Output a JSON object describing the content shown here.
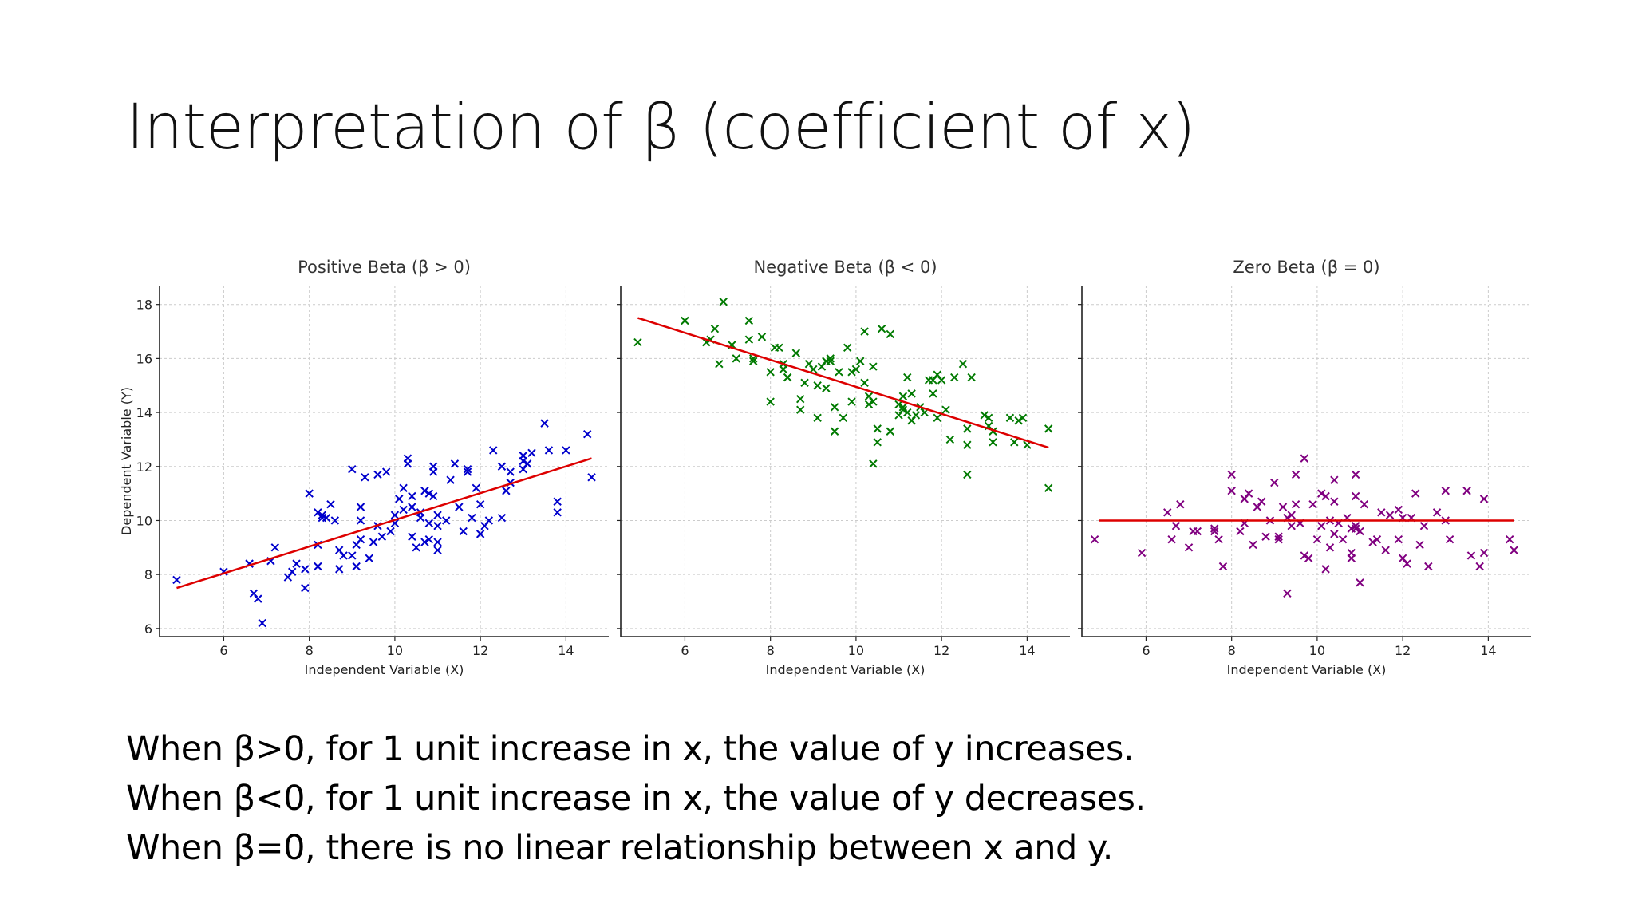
{
  "slide": {
    "title": "Interpretation of β (coefficient of x)",
    "bullets": [
      "When β>0, for 1 unit increase in x, the value of y increases.",
      "When β<0, for 1 unit increase in x, the value of y decreases.",
      "When β=0, there is no linear relationship between x and y."
    ]
  },
  "chart_data": [
    {
      "type": "scatter",
      "title": "Positive Beta (β > 0)",
      "xlabel": "Independent Variable (X)",
      "ylabel": "Dependent Variable (Y)",
      "xlim": [
        4.5,
        15.0
      ],
      "ylim": [
        5.7,
        18.7
      ],
      "xticks": [
        6,
        8,
        10,
        12,
        14
      ],
      "yticks": [
        6,
        8,
        10,
        12,
        14,
        16,
        18
      ],
      "grid": true,
      "marker_color": "#0000cc",
      "line_color": "#dd0000",
      "points": [
        [
          4.9,
          7.8
        ],
        [
          6.0,
          8.1
        ],
        [
          6.6,
          8.4
        ],
        [
          6.6,
          8.4
        ],
        [
          6.7,
          7.3
        ],
        [
          6.8,
          7.1
        ],
        [
          6.9,
          6.2
        ],
        [
          7.1,
          8.5
        ],
        [
          7.2,
          9.0
        ],
        [
          7.5,
          7.9
        ],
        [
          7.6,
          8.1
        ],
        [
          7.7,
          8.4
        ],
        [
          7.9,
          8.2
        ],
        [
          7.9,
          7.5
        ],
        [
          8.0,
          11.0
        ],
        [
          8.2,
          9.1
        ],
        [
          8.2,
          10.3
        ],
        [
          8.2,
          8.3
        ],
        [
          8.3,
          10.1
        ],
        [
          8.3,
          10.2
        ],
        [
          8.4,
          10.1
        ],
        [
          8.5,
          10.6
        ],
        [
          8.6,
          10.0
        ],
        [
          8.7,
          8.9
        ],
        [
          8.7,
          8.2
        ],
        [
          8.8,
          8.7
        ],
        [
          9.0,
          8.7
        ],
        [
          9.0,
          11.9
        ],
        [
          9.1,
          8.3
        ],
        [
          9.1,
          9.1
        ],
        [
          9.2,
          9.3
        ],
        [
          9.2,
          10.5
        ],
        [
          9.2,
          10.0
        ],
        [
          9.3,
          11.6
        ],
        [
          9.4,
          8.6
        ],
        [
          9.5,
          9.2
        ],
        [
          9.6,
          9.8
        ],
        [
          9.6,
          11.7
        ],
        [
          9.7,
          9.4
        ],
        [
          9.8,
          11.8
        ],
        [
          9.9,
          9.6
        ],
        [
          10.0,
          9.9
        ],
        [
          10.0,
          10.2
        ],
        [
          10.1,
          10.8
        ],
        [
          10.2,
          11.2
        ],
        [
          10.2,
          10.4
        ],
        [
          10.3,
          12.3
        ],
        [
          10.3,
          12.1
        ],
        [
          10.4,
          9.4
        ],
        [
          10.4,
          10.5
        ],
        [
          10.4,
          10.9
        ],
        [
          10.5,
          9.0
        ],
        [
          10.6,
          10.3
        ],
        [
          10.6,
          10.1
        ],
        [
          10.7,
          9.2
        ],
        [
          10.7,
          11.1
        ],
        [
          10.8,
          9.9
        ],
        [
          10.8,
          11.0
        ],
        [
          10.8,
          9.3
        ],
        [
          10.9,
          12.0
        ],
        [
          10.9,
          11.8
        ],
        [
          10.9,
          10.9
        ],
        [
          11.0,
          9.2
        ],
        [
          11.0,
          10.2
        ],
        [
          11.0,
          9.8
        ],
        [
          11.0,
          8.9
        ],
        [
          11.2,
          10.0
        ],
        [
          11.3,
          11.5
        ],
        [
          11.4,
          12.1
        ],
        [
          11.5,
          10.5
        ],
        [
          11.6,
          9.6
        ],
        [
          11.7,
          11.8
        ],
        [
          11.7,
          11.9
        ],
        [
          11.8,
          10.1
        ],
        [
          11.9,
          11.2
        ],
        [
          12.0,
          9.5
        ],
        [
          12.0,
          10.6
        ],
        [
          12.1,
          9.8
        ],
        [
          12.2,
          10.0
        ],
        [
          12.3,
          12.6
        ],
        [
          12.5,
          12.0
        ],
        [
          12.5,
          10.1
        ],
        [
          12.6,
          11.1
        ],
        [
          12.7,
          11.8
        ],
        [
          12.7,
          11.4
        ],
        [
          13.0,
          11.9
        ],
        [
          13.0,
          12.2
        ],
        [
          13.0,
          12.4
        ],
        [
          13.1,
          12.1
        ],
        [
          13.2,
          12.5
        ],
        [
          13.5,
          13.6
        ],
        [
          13.6,
          12.6
        ],
        [
          13.8,
          10.7
        ],
        [
          13.8,
          10.3
        ],
        [
          14.0,
          12.6
        ],
        [
          14.5,
          13.2
        ],
        [
          14.6,
          11.6
        ]
      ],
      "fit": {
        "x": [
          4.9,
          14.6
        ],
        "y": [
          7.5,
          12.3
        ]
      }
    },
    {
      "type": "scatter",
      "title": "Negative Beta (β < 0)",
      "xlabel": "Independent Variable (X)",
      "ylabel": "",
      "xlim": [
        4.5,
        15.0
      ],
      "ylim": [
        5.7,
        18.7
      ],
      "xticks": [
        6,
        8,
        10,
        12,
        14
      ],
      "yticks": [
        6,
        8,
        10,
        12,
        14,
        16,
        18
      ],
      "grid": true,
      "marker_color": "#007a00",
      "line_color": "#dd0000",
      "points": [
        [
          4.9,
          16.6
        ],
        [
          6.0,
          17.4
        ],
        [
          6.5,
          16.6
        ],
        [
          6.6,
          16.7
        ],
        [
          6.7,
          17.1
        ],
        [
          6.8,
          15.8
        ],
        [
          6.9,
          18.1
        ],
        [
          7.1,
          16.5
        ],
        [
          7.2,
          16.0
        ],
        [
          7.5,
          17.4
        ],
        [
          7.5,
          16.7
        ],
        [
          7.6,
          16.0
        ],
        [
          7.6,
          15.9
        ],
        [
          7.8,
          16.8
        ],
        [
          8.0,
          15.5
        ],
        [
          8.0,
          14.4
        ],
        [
          8.1,
          16.4
        ],
        [
          8.2,
          16.4
        ],
        [
          8.3,
          15.8
        ],
        [
          8.3,
          15.6
        ],
        [
          8.4,
          15.3
        ],
        [
          8.4,
          15.3
        ],
        [
          8.6,
          16.2
        ],
        [
          8.7,
          14.5
        ],
        [
          8.7,
          14.1
        ],
        [
          8.8,
          15.1
        ],
        [
          8.9,
          15.8
        ],
        [
          9.0,
          15.6
        ],
        [
          9.1,
          13.8
        ],
        [
          9.1,
          15.0
        ],
        [
          9.2,
          15.7
        ],
        [
          9.3,
          14.9
        ],
        [
          9.3,
          15.9
        ],
        [
          9.4,
          15.9
        ],
        [
          9.4,
          16.0
        ],
        [
          9.5,
          14.2
        ],
        [
          9.5,
          13.3
        ],
        [
          9.6,
          15.5
        ],
        [
          9.7,
          13.8
        ],
        [
          9.8,
          16.4
        ],
        [
          9.9,
          15.5
        ],
        [
          9.9,
          14.4
        ],
        [
          10.0,
          15.6
        ],
        [
          10.1,
          15.9
        ],
        [
          10.2,
          15.1
        ],
        [
          10.2,
          17.0
        ],
        [
          10.3,
          14.3
        ],
        [
          10.3,
          14.6
        ],
        [
          10.4,
          12.1
        ],
        [
          10.4,
          15.7
        ],
        [
          10.4,
          14.4
        ],
        [
          10.5,
          13.4
        ],
        [
          10.5,
          12.9
        ],
        [
          10.6,
          17.1
        ],
        [
          10.8,
          16.9
        ],
        [
          10.8,
          13.3
        ],
        [
          11.0,
          14.3
        ],
        [
          11.0,
          13.9
        ],
        [
          11.1,
          14.1
        ],
        [
          11.1,
          14.6
        ],
        [
          11.1,
          14.2
        ],
        [
          11.2,
          14.0
        ],
        [
          11.2,
          15.3
        ],
        [
          11.3,
          14.7
        ],
        [
          11.3,
          13.7
        ],
        [
          11.4,
          13.9
        ],
        [
          11.5,
          14.2
        ],
        [
          11.6,
          14.0
        ],
        [
          11.7,
          15.2
        ],
        [
          11.8,
          14.7
        ],
        [
          11.8,
          15.2
        ],
        [
          11.9,
          13.8
        ],
        [
          11.9,
          15.4
        ],
        [
          12.0,
          15.2
        ],
        [
          12.1,
          14.1
        ],
        [
          12.2,
          13.0
        ],
        [
          12.3,
          15.3
        ],
        [
          12.5,
          15.8
        ],
        [
          12.6,
          13.4
        ],
        [
          12.6,
          12.8
        ],
        [
          12.6,
          11.7
        ],
        [
          12.7,
          15.3
        ],
        [
          13.0,
          13.9
        ],
        [
          13.1,
          13.5
        ],
        [
          13.1,
          13.8
        ],
        [
          13.2,
          13.3
        ],
        [
          13.2,
          12.9
        ],
        [
          13.6,
          13.8
        ],
        [
          13.7,
          12.9
        ],
        [
          13.8,
          13.7
        ],
        [
          13.9,
          13.8
        ],
        [
          14.0,
          12.8
        ],
        [
          14.5,
          13.4
        ],
        [
          14.5,
          11.2
        ]
      ],
      "fit": {
        "x": [
          4.9,
          14.5
        ],
        "y": [
          17.5,
          12.7
        ]
      }
    },
    {
      "type": "scatter",
      "title": "Zero Beta (β = 0)",
      "xlabel": "Independent Variable (X)",
      "ylabel": "",
      "xlim": [
        4.5,
        15.0
      ],
      "ylim": [
        5.7,
        18.7
      ],
      "xticks": [
        6,
        8,
        10,
        12,
        14
      ],
      "yticks": [
        6,
        8,
        10,
        12,
        14,
        16,
        18
      ],
      "grid": true,
      "marker_color": "#800080",
      "line_color": "#dd0000",
      "points": [
        [
          4.8,
          9.3
        ],
        [
          5.9,
          8.8
        ],
        [
          6.5,
          10.3
        ],
        [
          6.6,
          9.3
        ],
        [
          6.7,
          9.8
        ],
        [
          6.8,
          10.6
        ],
        [
          7.0,
          9.0
        ],
        [
          7.1,
          9.6
        ],
        [
          7.2,
          9.6
        ],
        [
          7.6,
          9.7
        ],
        [
          7.6,
          9.6
        ],
        [
          7.7,
          9.3
        ],
        [
          7.8,
          8.3
        ],
        [
          8.0,
          11.7
        ],
        [
          8.0,
          11.1
        ],
        [
          8.2,
          9.6
        ],
        [
          8.3,
          9.9
        ],
        [
          8.3,
          10.8
        ],
        [
          8.4,
          11.0
        ],
        [
          8.5,
          9.1
        ],
        [
          8.6,
          10.5
        ],
        [
          8.7,
          10.7
        ],
        [
          8.8,
          9.4
        ],
        [
          8.9,
          10.0
        ],
        [
          9.0,
          11.4
        ],
        [
          9.1,
          9.4
        ],
        [
          9.1,
          9.3
        ],
        [
          9.2,
          10.5
        ],
        [
          9.3,
          10.1
        ],
        [
          9.3,
          7.3
        ],
        [
          9.4,
          10.2
        ],
        [
          9.4,
          9.8
        ],
        [
          9.5,
          11.7
        ],
        [
          9.5,
          10.6
        ],
        [
          9.6,
          9.9
        ],
        [
          9.7,
          8.7
        ],
        [
          9.7,
          12.3
        ],
        [
          9.8,
          8.6
        ],
        [
          9.9,
          10.6
        ],
        [
          10.0,
          9.3
        ],
        [
          10.1,
          11.0
        ],
        [
          10.1,
          9.8
        ],
        [
          10.2,
          8.2
        ],
        [
          10.2,
          10.9
        ],
        [
          10.3,
          9.0
        ],
        [
          10.3,
          10.0
        ],
        [
          10.4,
          11.5
        ],
        [
          10.4,
          9.5
        ],
        [
          10.4,
          10.7
        ],
        [
          10.5,
          9.9
        ],
        [
          10.6,
          9.3
        ],
        [
          10.7,
          10.1
        ],
        [
          10.8,
          9.7
        ],
        [
          10.8,
          8.8
        ],
        [
          10.8,
          8.6
        ],
        [
          10.9,
          9.7
        ],
        [
          10.9,
          10.9
        ],
        [
          10.9,
          9.8
        ],
        [
          10.9,
          11.7
        ],
        [
          11.0,
          9.6
        ],
        [
          11.0,
          7.7
        ],
        [
          11.1,
          10.6
        ],
        [
          11.3,
          9.2
        ],
        [
          11.4,
          9.3
        ],
        [
          11.5,
          10.3
        ],
        [
          11.6,
          8.9
        ],
        [
          11.7,
          10.2
        ],
        [
          11.9,
          10.4
        ],
        [
          11.9,
          9.3
        ],
        [
          12.0,
          10.1
        ],
        [
          12.0,
          8.6
        ],
        [
          12.1,
          8.4
        ],
        [
          12.2,
          10.1
        ],
        [
          12.3,
          11.0
        ],
        [
          12.4,
          9.1
        ],
        [
          12.5,
          9.8
        ],
        [
          12.6,
          8.3
        ],
        [
          12.8,
          10.3
        ],
        [
          13.0,
          11.1
        ],
        [
          13.0,
          10.0
        ],
        [
          13.1,
          9.3
        ],
        [
          13.5,
          11.1
        ],
        [
          13.6,
          8.7
        ],
        [
          13.8,
          8.3
        ],
        [
          13.9,
          10.8
        ],
        [
          13.9,
          8.8
        ],
        [
          14.5,
          9.3
        ],
        [
          14.6,
          8.9
        ]
      ],
      "fit": {
        "x": [
          4.9,
          14.6
        ],
        "y": [
          10.0,
          10.0
        ]
      }
    }
  ]
}
